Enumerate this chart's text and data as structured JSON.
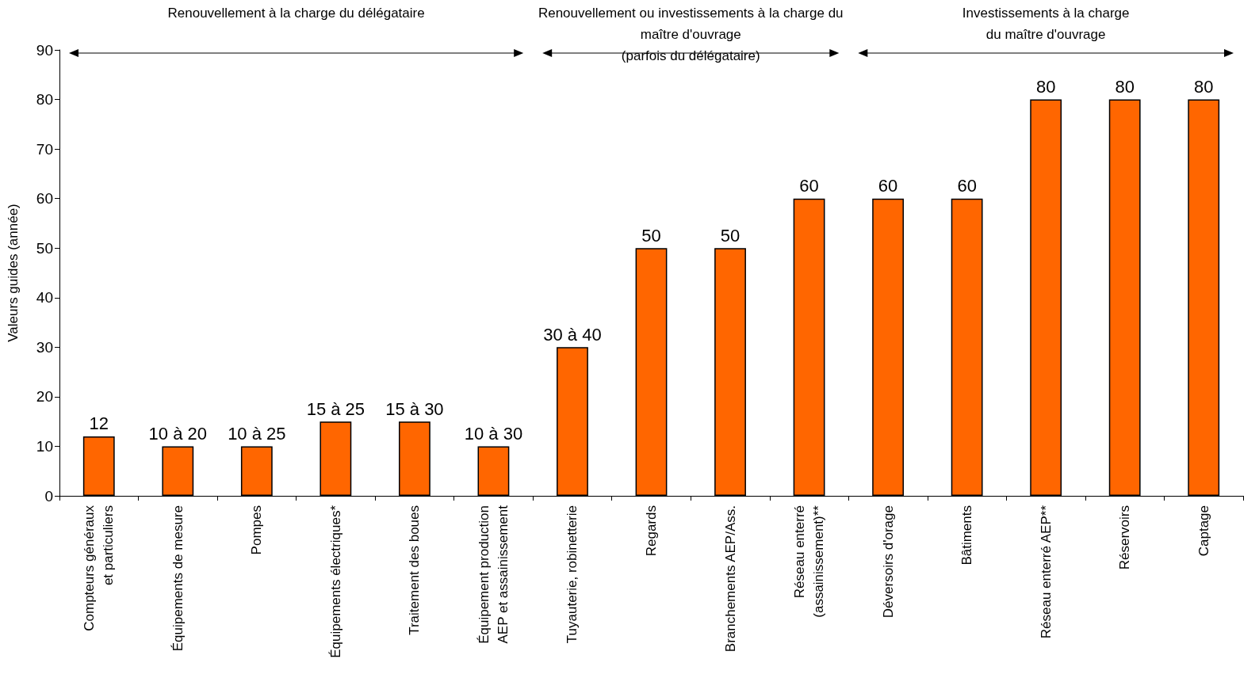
{
  "chart_data": {
    "type": "bar",
    "ylabel": "Valeurs guides (année)",
    "categories": [
      "Compteurs généraux\net particuliers",
      "Équipements de mesure",
      "Pompes",
      "Équipements électriques*",
      "Traitement des boues",
      "Équipement production\nAEP et assainissement",
      "Tuyauterie, robinetterie",
      "Regards",
      "Branchements AEP/Ass.",
      "Réseau enterré\n(assainissement)**",
      "Déversoirs d'orage",
      "Bâtiments",
      "Réseau enterré AEP**",
      "Réservoirs",
      "Captage"
    ],
    "values": [
      12,
      10,
      10,
      15,
      15,
      10,
      30,
      50,
      50,
      60,
      60,
      60,
      80,
      80,
      80
    ],
    "value_labels": [
      "12",
      "10 à 20",
      "10 à 25",
      "15 à 25",
      "15 à 30",
      "10 à 30",
      "30 à 40",
      "50",
      "50",
      "60",
      "60",
      "60",
      "80",
      "80",
      "80"
    ],
    "color": "#ff6600",
    "ylim": [
      0,
      90
    ],
    "yticks": [
      0,
      10,
      20,
      30,
      40,
      50,
      60,
      70,
      80,
      90
    ],
    "annotations": [
      "Renouvellement à la charge du délégataire",
      "Renouvellement ou investissements à la charge du maître d'ouvrage\n(parfois du délégataire)",
      "Investissements à la charge\ndu maître d'ouvrage"
    ]
  }
}
